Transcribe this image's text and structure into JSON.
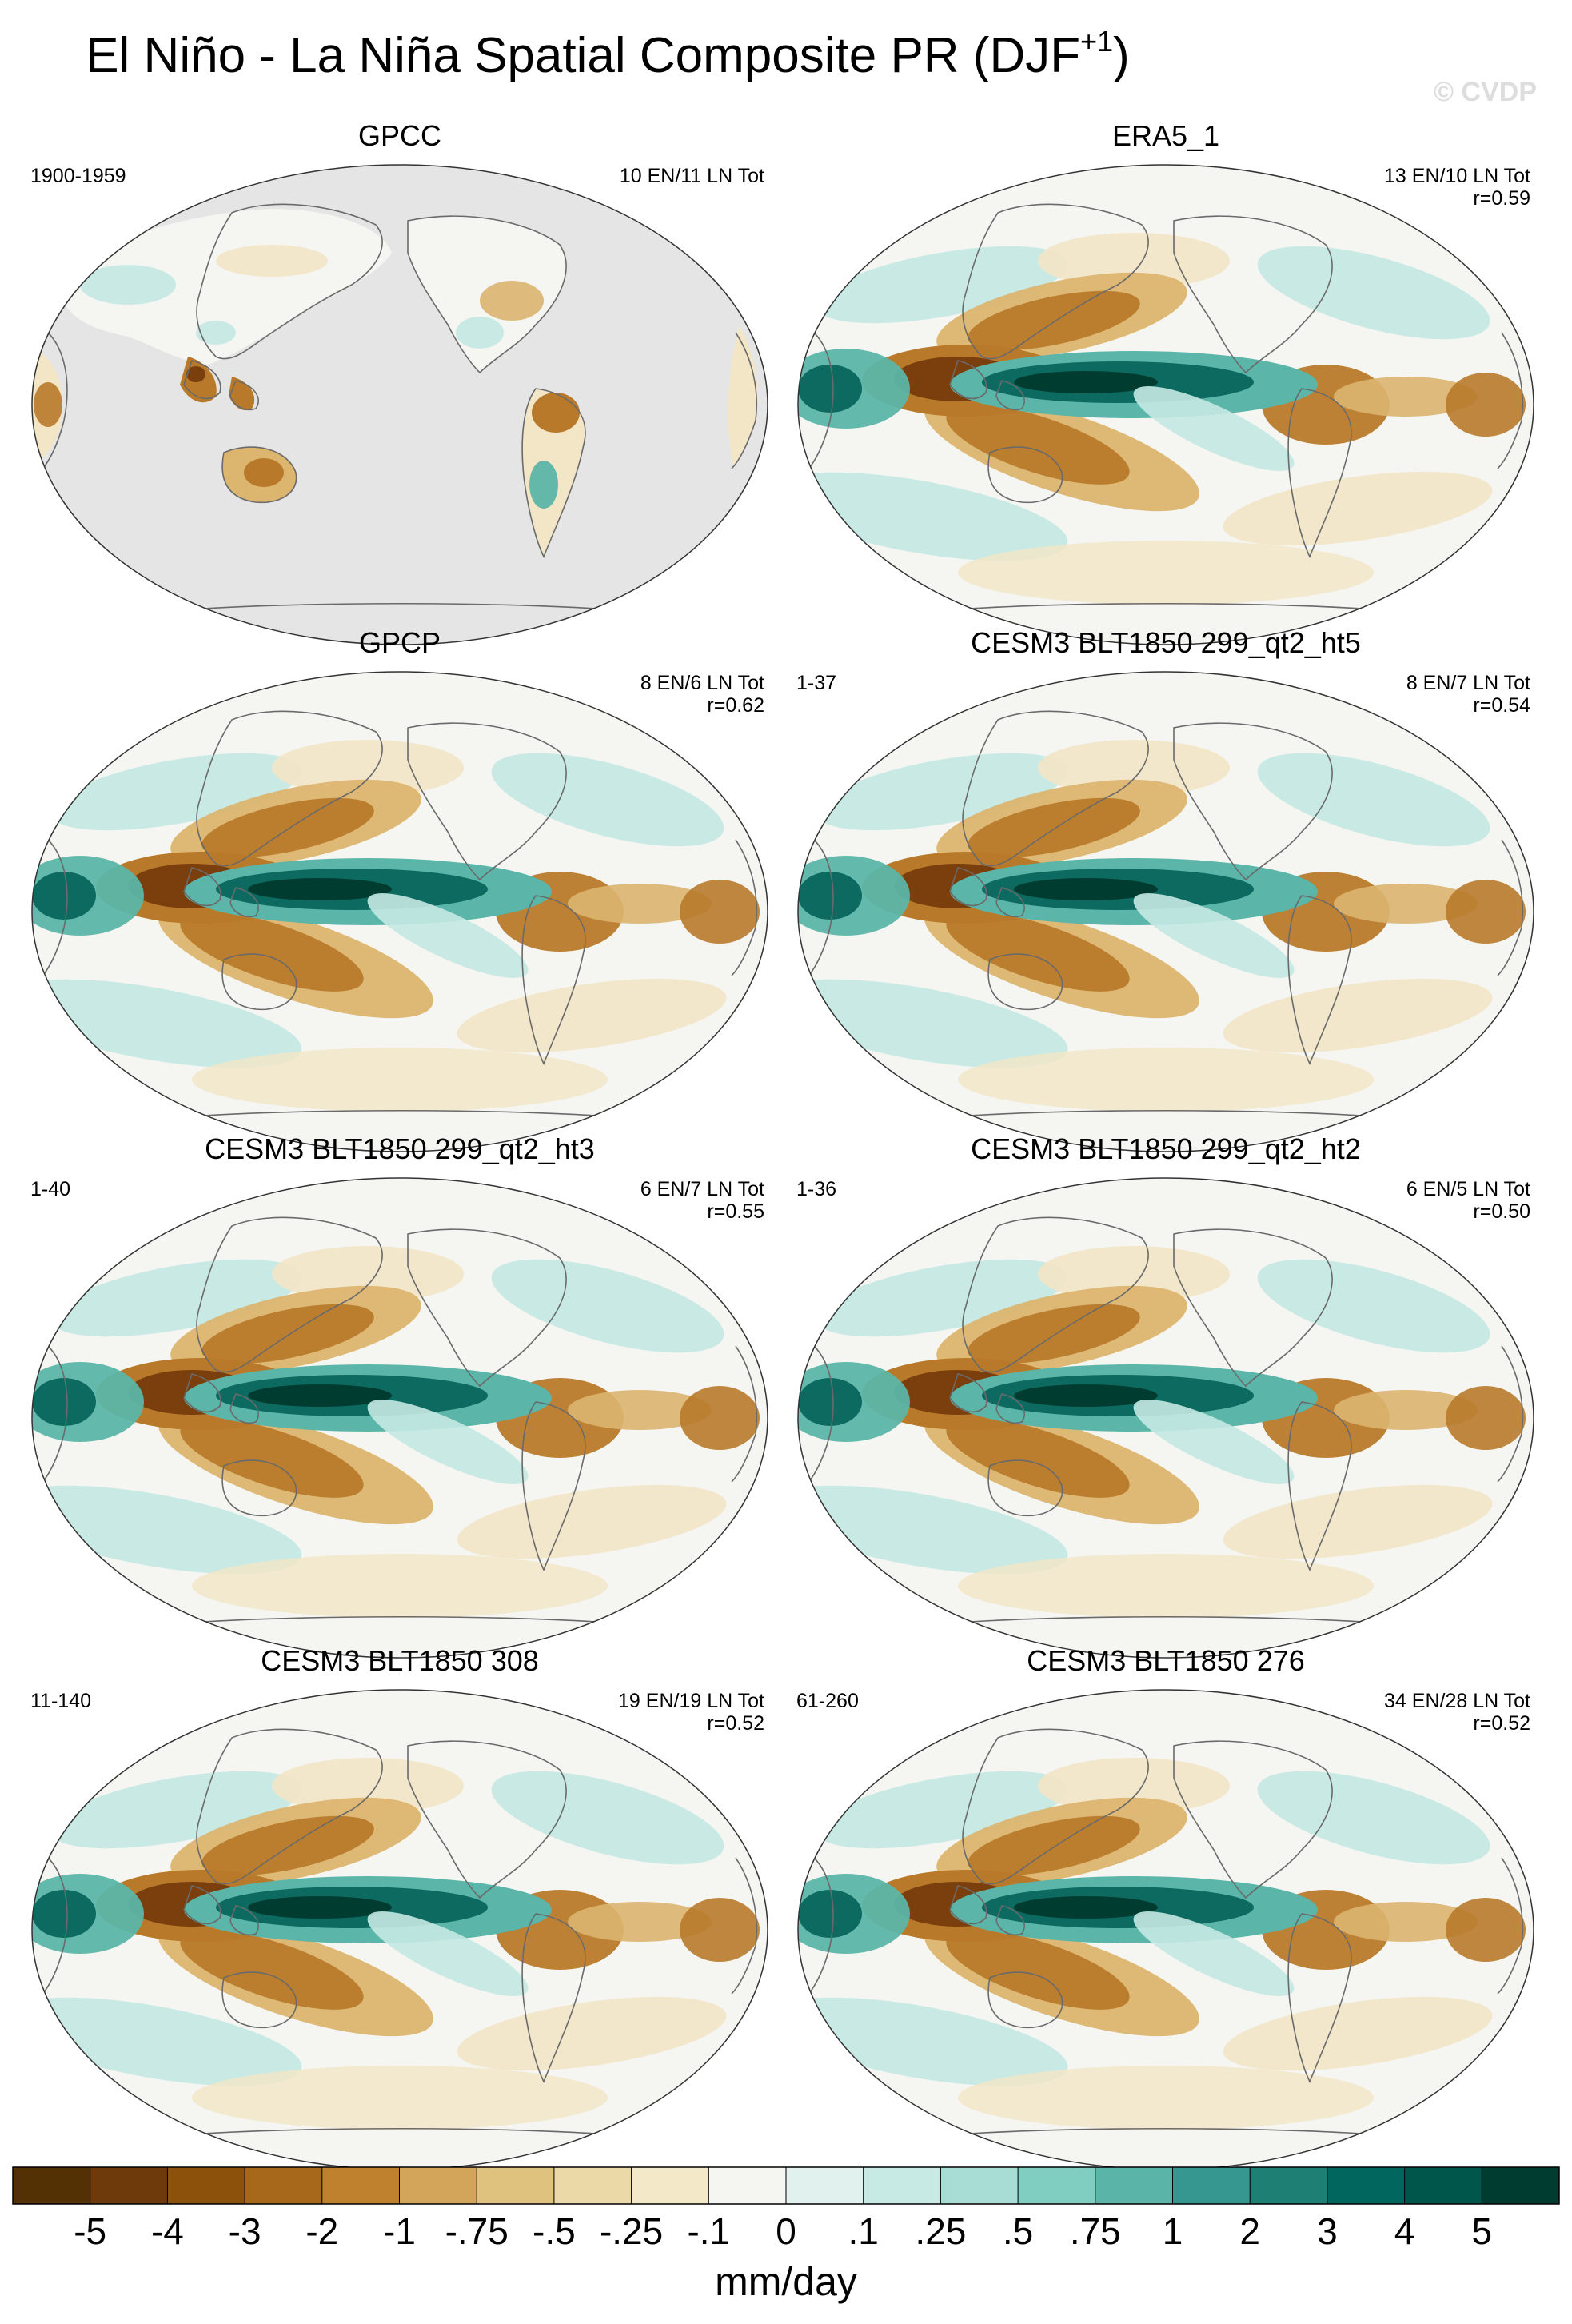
{
  "title": "El Niño - La Niña Spatial Composite PR (DJF",
  "title_superscript": "+1",
  "title_close": ")",
  "watermark": "© CVDP",
  "colors": {
    "brown_strong": "#7a3f0d",
    "brown_mid": "#b87a2a",
    "tan": "#dcb56f",
    "cream": "#f3e6c6",
    "white": "#f5f5f2",
    "teal_light": "#c4e9e2",
    "teal_mid": "#5bb5a8",
    "teal_strong": "#0c6a60",
    "teal_darkest": "#003c30",
    "missing_gray": "#e5e5e5"
  },
  "panels": [
    {
      "title": "GPCC",
      "left": "1900-1959",
      "right": [
        "10 EN/11 LN Tot"
      ],
      "style": "gpcc"
    },
    {
      "title": "ERA5_1",
      "left": "",
      "right": [
        "13 EN/10 LN Tot",
        "r=0.59"
      ],
      "style": "full"
    },
    {
      "title": "GPCP",
      "left": "",
      "right": [
        "8 EN/6 LN Tot",
        "r=0.62"
      ],
      "style": "full"
    },
    {
      "title": "CESM3 BLT1850 299_qt2_ht5",
      "left": "1-37",
      "right": [
        "8 EN/7 LN Tot",
        "r=0.54"
      ],
      "style": "full"
    },
    {
      "title": "CESM3 BLT1850 299_qt2_ht3",
      "left": "1-40",
      "right": [
        "6 EN/7 LN Tot",
        "r=0.55"
      ],
      "style": "full"
    },
    {
      "title": "CESM3 BLT1850 299_qt2_ht2",
      "left": "1-36",
      "right": [
        "6 EN/5 LN Tot",
        "r=0.50"
      ],
      "style": "full"
    },
    {
      "title": "CESM3 BLT1850 308",
      "left": "11-140",
      "right": [
        "19 EN/19 LN Tot",
        "r=0.52"
      ],
      "style": "full"
    },
    {
      "title": "CESM3 BLT1850 276",
      "left": "61-260",
      "right": [
        "34 EN/28 LN Tot",
        "r=0.52"
      ],
      "style": "full"
    }
  ],
  "colorbar": {
    "units": "mm/day",
    "labels": [
      "-5",
      "-4",
      "-3",
      "-2",
      "-1",
      "-.75",
      "-.5",
      "-.25",
      "-.1",
      "0",
      ".1",
      ".25",
      ".5",
      ".75",
      "1",
      "2",
      "3",
      "4",
      "5"
    ],
    "colors": [
      "#543005",
      "#6f3a0b",
      "#8c510a",
      "#a8681c",
      "#bf812d",
      "#d2a55a",
      "#dfc27d",
      "#ecd9a8",
      "#f3e8c8",
      "#f5f5f2",
      "#e0f1ee",
      "#c7eae5",
      "#a8ddd6",
      "#80cdc1",
      "#5ab4a8",
      "#35978f",
      "#1e8074",
      "#01665e",
      "#01564b",
      "#003c30"
    ]
  }
}
